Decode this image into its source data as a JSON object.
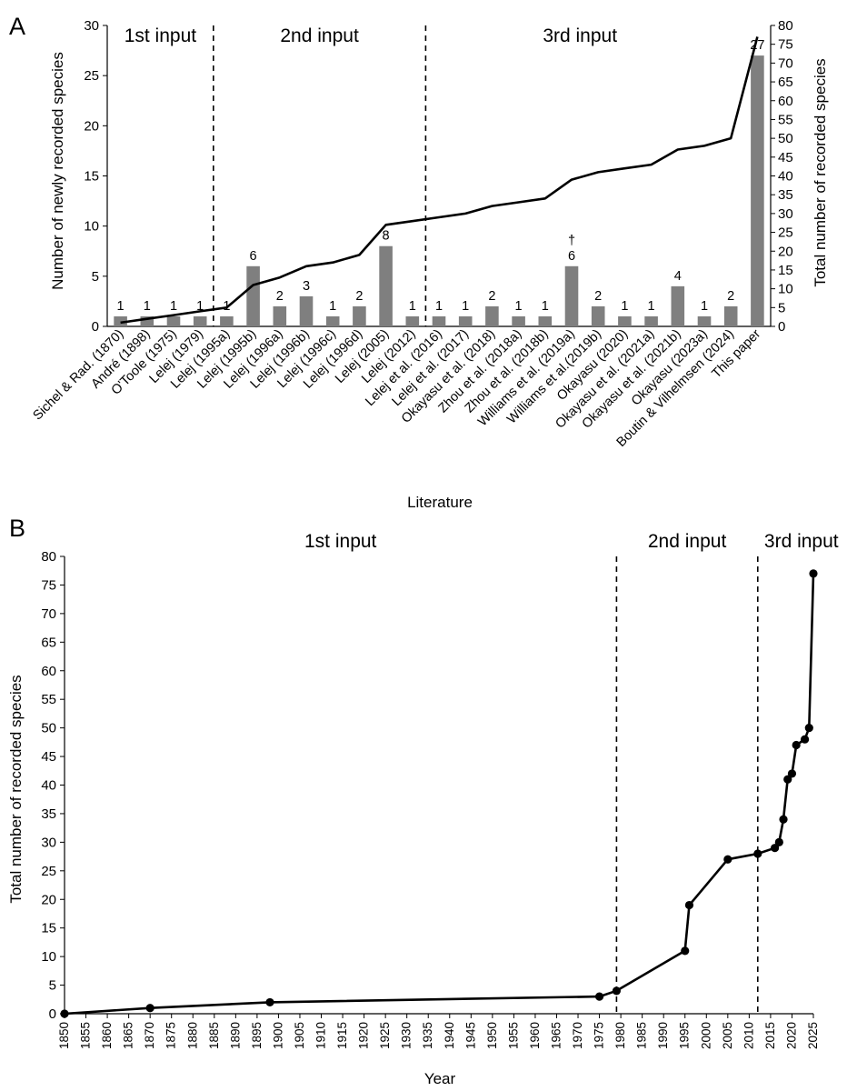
{
  "chart_data": [
    {
      "type": "bar",
      "panel_label": "A",
      "xlabel": "Literature",
      "ylabel": "Number of newly recorded species",
      "y2label": "Total number of recorded species",
      "ylim": [
        0,
        30
      ],
      "yticks": [
        0,
        5,
        10,
        15,
        20,
        25,
        30
      ],
      "y2lim": [
        0,
        80
      ],
      "y2ticks": [
        0,
        5,
        10,
        15,
        20,
        25,
        30,
        35,
        40,
        45,
        50,
        55,
        60,
        65,
        70,
        75,
        80
      ],
      "categories": [
        "Sichel & Rad. (1870)",
        "André (1898)",
        "O'Toole (1975)",
        "Lelej (1979)",
        "Lelej (1995a)",
        "Lelej (1995b)",
        "Lelej (1996a)",
        "Lelej (1996b)",
        "Lelej (1996c)",
        "Lelej (1996d)",
        "Lelej (2005)",
        "Lelej (2012)",
        "Lelej et al. (2016)",
        "Lelej et al. (2017)",
        "Okayasu et al. (2018)",
        "Zhou et al. (2018a)",
        "Zhou et al. (2018b)",
        "Williams et al. (2019a)",
        "Williams et al.(2019b)",
        "Okayasu (2020)",
        "Okayasu et al. (2021a)",
        "Okayasu et al. (2021b)",
        "Okayasu (2023a)",
        "Boutin & Vilhelmsen (2024)",
        "This paper"
      ],
      "series": [
        {
          "type": "bar",
          "axis": "left",
          "values": [
            1,
            1,
            1,
            1,
            1,
            6,
            2,
            3,
            1,
            2,
            8,
            1,
            1,
            1,
            2,
            1,
            1,
            6,
            2,
            1,
            1,
            4,
            1,
            2,
            27
          ]
        },
        {
          "type": "line",
          "axis": "right",
          "values": [
            1,
            2,
            3,
            4,
            5,
            11,
            13,
            16,
            17,
            19,
            27,
            28,
            29,
            30,
            32,
            33,
            34,
            39,
            41,
            42,
            43,
            47,
            48,
            50,
            77
          ]
        }
      ],
      "data_labels": [
        "1",
        "1",
        "1",
        "1",
        "1",
        "6",
        "2",
        "3",
        "1",
        "2",
        "8",
        "1",
        "1",
        "1",
        "2",
        "1",
        "1",
        "6",
        "2",
        "1",
        "1",
        "4",
        "1",
        "2",
        "27"
      ],
      "dagger": {
        "category_index": 17,
        "symbol": "†"
      },
      "regions": [
        {
          "label": "1st input",
          "from_index": 0,
          "to_index": 3
        },
        {
          "label": "2nd input",
          "from_index": 4,
          "to_index": 11
        },
        {
          "label": "3rd input",
          "from_index": 12,
          "to_index": 24
        }
      ],
      "dividers_after_index": [
        3,
        11
      ],
      "grid": false,
      "colors": {
        "bar": "#7f7f7f",
        "line": "#000000"
      }
    },
    {
      "type": "line",
      "panel_label": "B",
      "xlabel": "Year",
      "ylabel": "Total number of recorded species",
      "xlim": [
        1850,
        2025
      ],
      "xticks": [
        1850,
        1855,
        1860,
        1865,
        1870,
        1875,
        1880,
        1885,
        1890,
        1895,
        1900,
        1905,
        1910,
        1915,
        1920,
        1925,
        1930,
        1935,
        1940,
        1945,
        1950,
        1955,
        1960,
        1965,
        1970,
        1975,
        1980,
        1985,
        1990,
        1995,
        2000,
        2005,
        2010,
        2015,
        2020,
        2025
      ],
      "ylim": [
        0,
        80
      ],
      "yticks": [
        0,
        5,
        10,
        15,
        20,
        25,
        30,
        35,
        40,
        45,
        50,
        55,
        60,
        65,
        70,
        75,
        80
      ],
      "series": [
        {
          "x": [
            1850,
            1870,
            1898,
            1975,
            1979,
            1995,
            1996,
            2005,
            2012,
            2016,
            2017,
            2018,
            2019,
            2020,
            2021,
            2023,
            2024,
            2025
          ],
          "y": [
            0,
            1,
            2,
            3,
            4,
            11,
            19,
            27,
            28,
            29,
            30,
            34,
            41,
            42,
            47,
            48,
            50,
            77
          ]
        }
      ],
      "regions": [
        {
          "label": "1st input",
          "from": 1850,
          "to": 1979
        },
        {
          "label": "2nd input",
          "from": 1979,
          "to": 2012
        },
        {
          "label": "3rd input",
          "from": 2012,
          "to": 2025
        }
      ],
      "dividers_at_year": [
        1979,
        2012
      ],
      "grid": false,
      "colors": {
        "line": "#000000",
        "marker": "#000000"
      }
    }
  ]
}
